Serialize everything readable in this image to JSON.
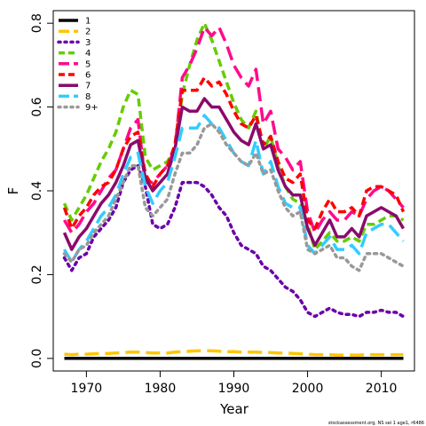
{
  "chart_data": {
    "type": "line",
    "title": "",
    "xlabel": "Year",
    "ylabel": "F",
    "xlim": [
      1965.5,
      2014.5
    ],
    "ylim": [
      -0.03,
      0.83
    ],
    "xticks": [
      1970,
      1980,
      1990,
      2000,
      2010
    ],
    "yticks": [
      0.0,
      0.2,
      0.4,
      0.6,
      0.8
    ],
    "ytick_labels": [
      "0.0",
      "0.2",
      "0.4",
      "0.6",
      "0.8"
    ],
    "grid": false,
    "legend_position": "top-left",
    "credit": "stockassessment.org, NS sei 1 age1, r6486",
    "years": [
      1967,
      1968,
      1969,
      1970,
      1971,
      1972,
      1973,
      1974,
      1975,
      1976,
      1977,
      1978,
      1979,
      1980,
      1981,
      1982,
      1983,
      1984,
      1985,
      1986,
      1987,
      1988,
      1989,
      1990,
      1991,
      1992,
      1993,
      1994,
      1995,
      1996,
      1997,
      1998,
      1999,
      2000,
      2001,
      2002,
      2003,
      2004,
      2005,
      2006,
      2007,
      2008,
      2009,
      2010,
      2011,
      2012,
      2013
    ],
    "series": [
      {
        "name": "1",
        "color": "#000000",
        "dash": "solid",
        "values": [
          0,
          0,
          0,
          0,
          0,
          0,
          0,
          0,
          0,
          0,
          0,
          0,
          0,
          0,
          0,
          0,
          0,
          0,
          0,
          0,
          0,
          0,
          0,
          0,
          0,
          0,
          0,
          0,
          0,
          0,
          0,
          0,
          0,
          0,
          0,
          0,
          0,
          0,
          0,
          0,
          0,
          0,
          0,
          0,
          0,
          0,
          0
        ]
      },
      {
        "name": "2",
        "color": "#FFC500",
        "dash": "longdash",
        "values": [
          0.01,
          0.009,
          0.01,
          0.01,
          0.011,
          0.012,
          0.012,
          0.013,
          0.014,
          0.015,
          0.015,
          0.014,
          0.013,
          0.013,
          0.013,
          0.015,
          0.016,
          0.017,
          0.018,
          0.018,
          0.018,
          0.017,
          0.016,
          0.016,
          0.015,
          0.015,
          0.015,
          0.014,
          0.014,
          0.013,
          0.013,
          0.012,
          0.011,
          0.01,
          0.009,
          0.009,
          0.009,
          0.008,
          0.008,
          0.008,
          0.008,
          0.009,
          0.009,
          0.009,
          0.009,
          0.009,
          0.009
        ]
      },
      {
        "name": "3",
        "color": "#6A00A8",
        "dash": "dotted",
        "values": [
          0.24,
          0.21,
          0.24,
          0.25,
          0.29,
          0.31,
          0.33,
          0.36,
          0.42,
          0.45,
          0.46,
          0.41,
          0.32,
          0.31,
          0.32,
          0.36,
          0.42,
          0.42,
          0.42,
          0.41,
          0.39,
          0.36,
          0.34,
          0.3,
          0.27,
          0.26,
          0.25,
          0.22,
          0.21,
          0.19,
          0.17,
          0.16,
          0.14,
          0.11,
          0.1,
          0.11,
          0.12,
          0.11,
          0.105,
          0.105,
          0.1,
          0.11,
          0.11,
          0.115,
          0.11,
          0.11,
          0.1
        ]
      },
      {
        "name": "4",
        "color": "#66CC00",
        "dash": "dashed",
        "values": [
          0.37,
          0.33,
          0.36,
          0.39,
          0.43,
          0.47,
          0.5,
          0.54,
          0.6,
          0.64,
          0.63,
          0.48,
          0.45,
          0.46,
          0.47,
          0.5,
          0.63,
          0.7,
          0.76,
          0.8,
          0.76,
          0.71,
          0.66,
          0.61,
          0.57,
          0.55,
          0.59,
          0.5,
          0.53,
          0.46,
          0.41,
          0.38,
          0.37,
          0.32,
          0.26,
          0.28,
          0.3,
          0.28,
          0.28,
          0.29,
          0.28,
          0.32,
          0.32,
          0.33,
          0.34,
          0.34,
          0.33
        ]
      },
      {
        "name": "5",
        "color": "#FF0A8C",
        "dash": "longdash",
        "values": [
          0.33,
          0.3,
          0.32,
          0.35,
          0.37,
          0.4,
          0.43,
          0.45,
          0.5,
          0.55,
          0.57,
          0.42,
          0.42,
          0.44,
          0.46,
          0.5,
          0.67,
          0.7,
          0.74,
          0.79,
          0.77,
          0.79,
          0.75,
          0.7,
          0.67,
          0.65,
          0.69,
          0.56,
          0.59,
          0.5,
          0.48,
          0.45,
          0.47,
          0.35,
          0.3,
          0.33,
          0.35,
          0.33,
          0.33,
          0.35,
          0.34,
          0.38,
          0.4,
          0.41,
          0.4,
          0.38,
          0.36
        ]
      },
      {
        "name": "6",
        "color": "#FF0000",
        "dash": "dashed",
        "values": [
          0.36,
          0.31,
          0.34,
          0.36,
          0.39,
          0.41,
          0.42,
          0.45,
          0.5,
          0.53,
          0.54,
          0.44,
          0.41,
          0.44,
          0.46,
          0.51,
          0.64,
          0.64,
          0.64,
          0.67,
          0.65,
          0.66,
          0.63,
          0.59,
          0.56,
          0.55,
          0.58,
          0.51,
          0.53,
          0.47,
          0.43,
          0.42,
          0.44,
          0.33,
          0.31,
          0.35,
          0.38,
          0.35,
          0.35,
          0.36,
          0.34,
          0.4,
          0.41,
          0.41,
          0.4,
          0.39,
          0.35
        ]
      },
      {
        "name": "7",
        "color": "#8B0A6B",
        "dash": "solid",
        "values": [
          0.3,
          0.26,
          0.29,
          0.31,
          0.34,
          0.37,
          0.39,
          0.42,
          0.46,
          0.51,
          0.52,
          0.43,
          0.4,
          0.42,
          0.44,
          0.5,
          0.6,
          0.59,
          0.59,
          0.62,
          0.6,
          0.6,
          0.57,
          0.54,
          0.52,
          0.51,
          0.56,
          0.5,
          0.51,
          0.45,
          0.41,
          0.39,
          0.39,
          0.31,
          0.27,
          0.3,
          0.33,
          0.29,
          0.29,
          0.31,
          0.29,
          0.34,
          0.35,
          0.36,
          0.35,
          0.34,
          0.31
        ]
      },
      {
        "name": "8",
        "color": "#33CCFF",
        "dash": "longdash",
        "values": [
          0.26,
          0.23,
          0.26,
          0.28,
          0.31,
          0.34,
          0.36,
          0.39,
          0.44,
          0.48,
          0.49,
          0.41,
          0.37,
          0.4,
          0.42,
          0.48,
          0.55,
          0.55,
          0.55,
          0.58,
          0.56,
          0.55,
          0.52,
          0.49,
          0.47,
          0.46,
          0.52,
          0.44,
          0.47,
          0.41,
          0.37,
          0.36,
          0.36,
          0.27,
          0.25,
          0.27,
          0.29,
          0.26,
          0.26,
          0.27,
          0.25,
          0.3,
          0.31,
          0.32,
          0.32,
          0.3,
          0.28
        ]
      },
      {
        "name": "9+",
        "color": "#999999",
        "dash": "dotted",
        "values": [
          0.25,
          0.23,
          0.26,
          0.27,
          0.3,
          0.32,
          0.34,
          0.38,
          0.42,
          0.46,
          0.46,
          0.36,
          0.34,
          0.36,
          0.38,
          0.44,
          0.49,
          0.49,
          0.51,
          0.55,
          0.56,
          0.54,
          0.51,
          0.49,
          0.47,
          0.46,
          0.49,
          0.44,
          0.45,
          0.4,
          0.36,
          0.34,
          0.35,
          0.26,
          0.25,
          0.26,
          0.27,
          0.24,
          0.24,
          0.22,
          0.21,
          0.25,
          0.25,
          0.25,
          0.24,
          0.23,
          0.22
        ]
      }
    ]
  }
}
